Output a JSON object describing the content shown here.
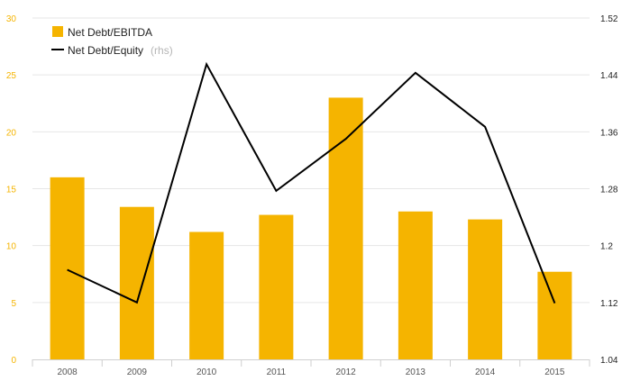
{
  "chart_data": {
    "type": "bar+line",
    "categories": [
      "2008",
      "2009",
      "2010",
      "2011",
      "2012",
      "2013",
      "2014",
      "2015"
    ],
    "series": [
      {
        "name": "Net Debt/EBITDA",
        "type": "bar",
        "axis": "left",
        "color": "#F5B400",
        "values": [
          16.0,
          13.4,
          11.2,
          12.7,
          23.0,
          13.0,
          12.3,
          7.7
        ]
      },
      {
        "name": "Net Debt/Equity",
        "type": "line",
        "axis": "right",
        "color": "#000000",
        "values": [
          1.166,
          1.12,
          1.455,
          1.277,
          1.35,
          1.443,
          1.367,
          1.119
        ]
      }
    ],
    "y_left": {
      "min": 0,
      "max": 30,
      "ticks": [
        "0",
        "5",
        "10",
        "15",
        "20",
        "25",
        "30"
      ]
    },
    "y_right": {
      "min": 1.04,
      "max": 1.52,
      "ticks": [
        "1.04",
        "1.12",
        "1.2",
        "1.28",
        "1.36",
        "1.44",
        "1.52"
      ]
    },
    "legend": {
      "position": "top-left",
      "items": [
        {
          "label": "Net Debt/EBITDA",
          "note": ""
        },
        {
          "label": "Net Debt/Equity",
          "note": "(rhs)"
        }
      ]
    },
    "grid": true
  }
}
